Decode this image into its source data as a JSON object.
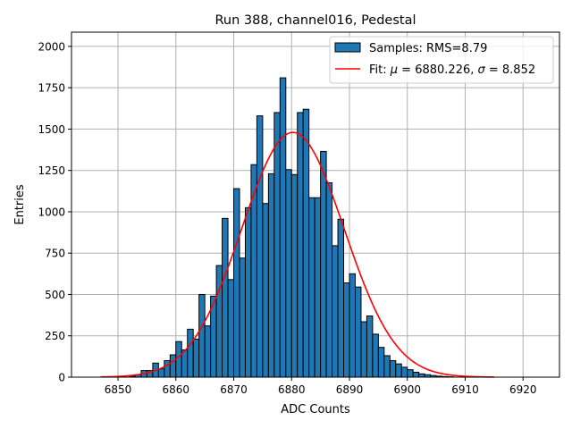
{
  "chart_data": {
    "type": "bar",
    "title": "Run 388, channel016, Pedestal",
    "xlabel": "ADC Counts",
    "ylabel": "Entries",
    "xlim": [
      6841.96,
      6926.3
    ],
    "ylim": [
      0,
      2086
    ],
    "grid": true,
    "legend_position": "top-right",
    "xticks": [
      6850,
      6860,
      6870,
      6880,
      6890,
      6900,
      6910,
      6920
    ],
    "yticks": [
      0,
      250,
      500,
      750,
      1000,
      1250,
      1500,
      1750,
      2000
    ],
    "histogram": {
      "name": "Samples: RMS=8.79",
      "color": "#1f77b4",
      "bin_width": 1,
      "bin_starts": [
        6852,
        6853,
        6854,
        6855,
        6856,
        6857,
        6858,
        6859,
        6860,
        6861,
        6862,
        6863,
        6864,
        6865,
        6866,
        6867,
        6868,
        6869,
        6870,
        6871,
        6872,
        6873,
        6874,
        6875,
        6876,
        6877,
        6878,
        6879,
        6880,
        6881,
        6882,
        6883,
        6884,
        6885,
        6886,
        6887,
        6888,
        6889,
        6890,
        6891,
        6892,
        6893,
        6894,
        6895,
        6896,
        6897,
        6898,
        6899,
        6900,
        6901,
        6902,
        6903,
        6904,
        6905,
        6906,
        6907
      ],
      "values": [
        5,
        15,
        40,
        40,
        85,
        50,
        100,
        135,
        215,
        165,
        290,
        230,
        500,
        310,
        490,
        675,
        960,
        590,
        1140,
        720,
        1025,
        1285,
        1580,
        1050,
        1230,
        1600,
        1810,
        1255,
        1225,
        1600,
        1620,
        1085,
        1085,
        1365,
        1175,
        795,
        955,
        570,
        625,
        545,
        335,
        370,
        260,
        180,
        130,
        100,
        80,
        60,
        45,
        30,
        20,
        15,
        10,
        6,
        4,
        2
      ]
    },
    "fit": {
      "name": "Fit: μ = 6880.226, σ = 8.852",
      "mu_label": "μ",
      "sigma_label": "σ",
      "legend_text_prefix": "Fit: ",
      "legend_mu_value": " = 6880.226, ",
      "legend_sigma_value": " = 8.852",
      "mu": 6880.226,
      "sigma": 8.852,
      "amplitude": 1480,
      "x_range": [
        6847,
        6915
      ],
      "color": "#ff0000"
    }
  }
}
